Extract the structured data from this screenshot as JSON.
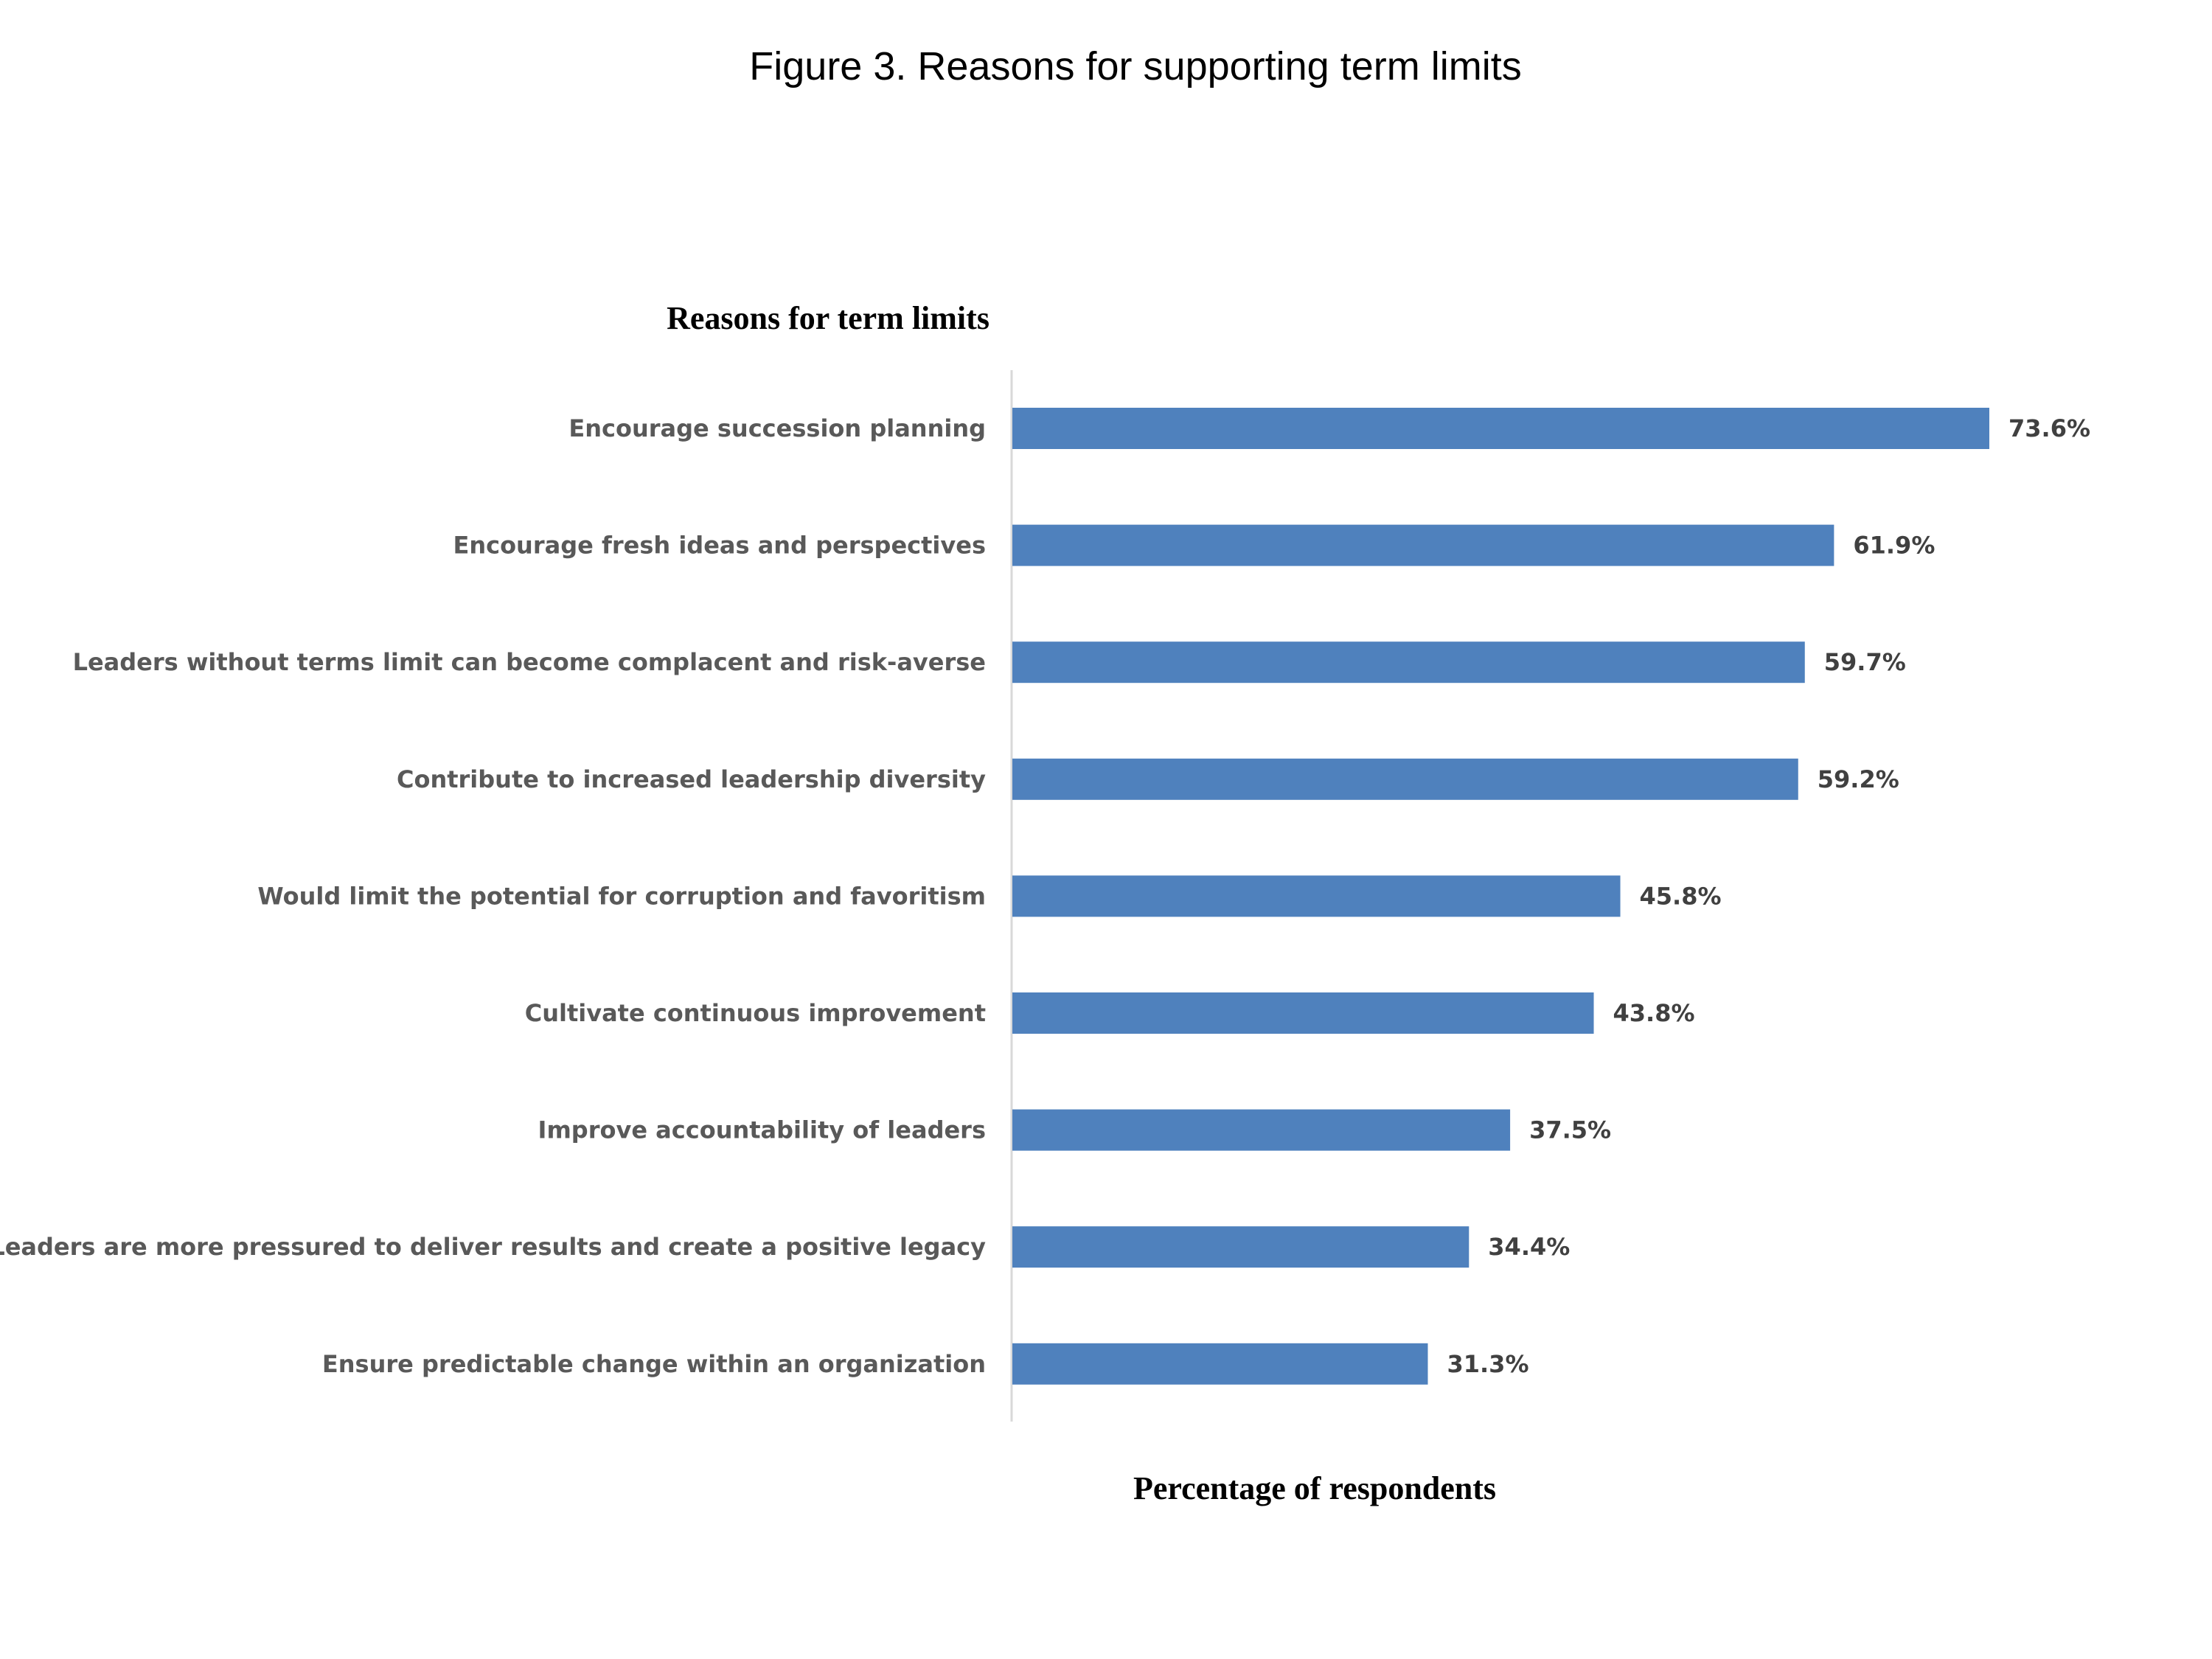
{
  "chart_data": {
    "type": "bar",
    "orientation": "horizontal",
    "title": "Figure 3. Reasons for supporting term limits",
    "ylabel": "Reasons for term limits",
    "xlabel": "Percentage of respondents",
    "categories": [
      "Encourage succession planning",
      "Encourage fresh ideas and perspectives",
      "Leaders without terms limit can become complacent and risk-averse",
      "Contribute to increased leadership diversity",
      "Would limit the potential for corruption and favoritism",
      "Cultivate continuous improvement",
      "Improve accountability of leaders",
      "Leaders are more pressured to deliver results and create a positive legacy",
      "Ensure predictable change within an organization"
    ],
    "values": [
      73.6,
      61.9,
      59.7,
      59.2,
      45.8,
      43.8,
      37.5,
      34.4,
      31.3
    ],
    "value_labels": [
      "73.6%",
      "61.9%",
      "59.7%",
      "59.2%",
      "45.8%",
      "43.8%",
      "37.5%",
      "34.4%",
      "31.3%"
    ],
    "xlim": [
      0,
      80
    ],
    "grid": false,
    "legend": "none",
    "bar_color": "#4F81BD"
  }
}
